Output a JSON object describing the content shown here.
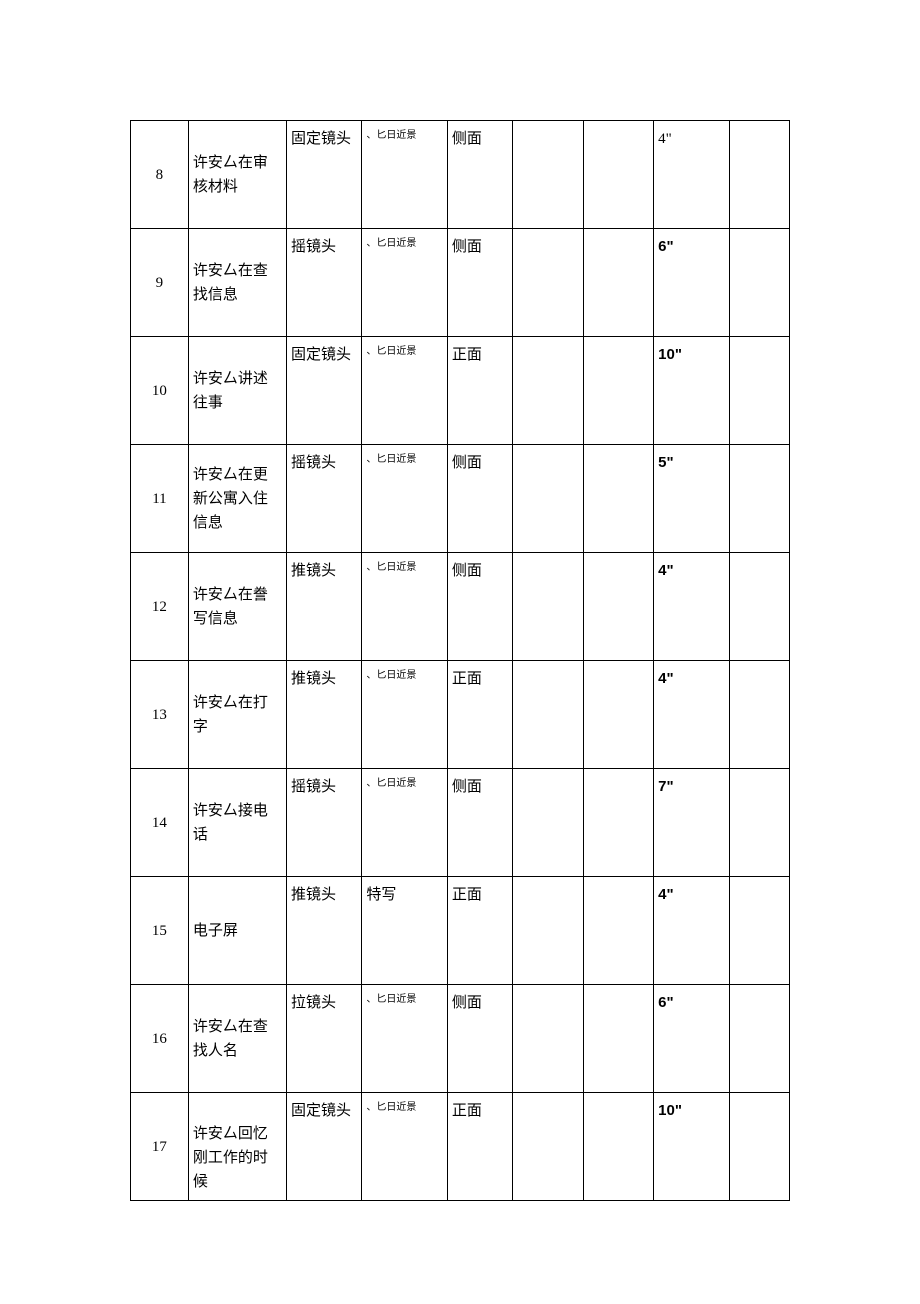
{
  "table": {
    "columns": {
      "num_width": 46,
      "desc_width": 78,
      "shot_width": 60,
      "scene_width": 68,
      "angle_width": 52,
      "blank1_width": 56,
      "blank2_width": 56,
      "dur_width": 60,
      "blank3_width": 48
    },
    "styling": {
      "border_color": "#000000",
      "background_color": "#ffffff",
      "text_color": "#000000",
      "body_font_size": 15,
      "small_font_size": 10,
      "line_height": 1.6,
      "min_row_height": 108
    },
    "rows": [
      {
        "num": "8",
        "desc": " 许安厶在审核材料",
        "shot": "固定镜头",
        "scene": "、匕日近景",
        "angle": "侧面",
        "blank1": "",
        "blank2": "",
        "dur": "4\"",
        "dur_bold": false,
        "blank3": ""
      },
      {
        "num": "9",
        "desc": " 许安厶在查找信息",
        "shot": "摇镜头",
        "scene": "、匕日近景",
        "angle": "侧面",
        "blank1": "",
        "blank2": "",
        "dur": "6\"",
        "dur_bold": true,
        "blank3": ""
      },
      {
        "num": "10",
        "desc": " 许安厶讲述往事",
        "shot": "固定镜头",
        "scene": "、匕日近景",
        "angle": "正面",
        "blank1": "",
        "blank2": "",
        "dur": "10\"",
        "dur_bold": true,
        "blank3": ""
      },
      {
        "num": "11",
        "desc": " 许安厶在更新公寓入住信息",
        "shot": "摇镜头",
        "scene": "、匕日近景",
        "angle": "侧面",
        "blank1": "",
        "blank2": "",
        "dur": "5\"",
        "dur_bold": true,
        "blank3": ""
      },
      {
        "num": "12",
        "desc": " 许安厶在誊写信息",
        "shot": "推镜头",
        "scene": "、匕日近景",
        "angle": "侧面",
        "blank1": "",
        "blank2": "",
        "dur": "4\"",
        "dur_bold": true,
        "blank3": ""
      },
      {
        "num": "13",
        "desc": " 许安厶在打字",
        "shot": "推镜头",
        "scene": "、匕日近景",
        "angle": "正面",
        "blank1": "",
        "blank2": "",
        "dur": "4\"",
        "dur_bold": true,
        "blank3": ""
      },
      {
        "num": "14",
        "desc": " 许安厶接电话",
        "shot": "摇镜头",
        "scene": "、匕日近景",
        "angle": "侧面",
        "blank1": "",
        "blank2": "",
        "dur": "7\"",
        "dur_bold": true,
        "blank3": ""
      },
      {
        "num": "15",
        "desc": "电子屏",
        "shot": "推镜头",
        "scene": "特写",
        "scene_normal": true,
        "angle": "正面",
        "blank1": "",
        "blank2": "",
        "dur": "4\"",
        "dur_bold": true,
        "blank3": ""
      },
      {
        "num": "16",
        "desc": " 许安厶在查找人名",
        "shot": "拉镜头",
        "scene": "、匕日近景",
        "angle": "侧面",
        "blank1": "",
        "blank2": "",
        "dur": "6\"",
        "dur_bold": true,
        "blank3": ""
      },
      {
        "num": "17",
        "desc": " 许安厶回忆刚工作的时候",
        "desc_bottom": true,
        "shot": "固定镜头",
        "scene": "、匕日近景",
        "angle": "正面",
        "blank1": "",
        "blank2": "",
        "dur": "10\"",
        "dur_bold": true,
        "blank3": ""
      }
    ]
  }
}
